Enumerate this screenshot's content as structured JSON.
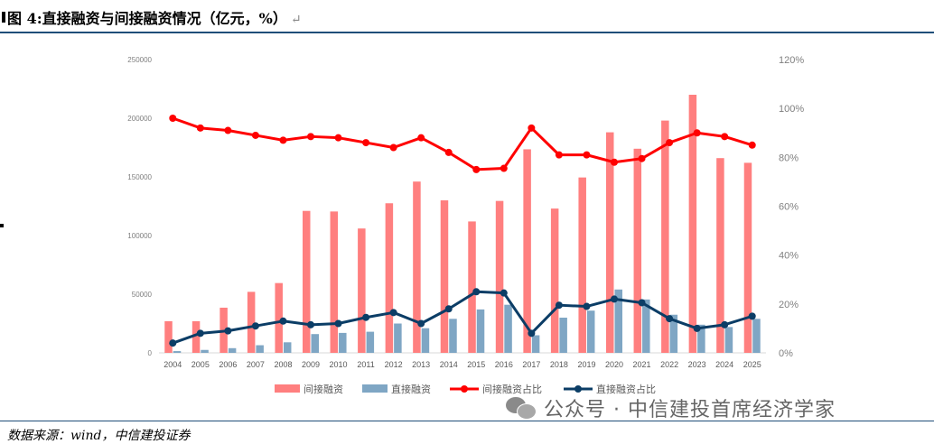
{
  "title": "图 4:直接融资与间接融资情况（亿元，%）",
  "title_suffix": "↵",
  "source": "数据来源：wind，中信建投证券",
  "watermark": "公众号 · 中信建投首席经济学家",
  "colors": {
    "indirect_bar": "#ff7f7f",
    "direct_bar": "#7fa6c4",
    "indirect_line": "#ff0000",
    "direct_line": "#0b3d66",
    "axis_text": "#7f7f7f",
    "rule": "#1f4e79"
  },
  "chart_data": {
    "type": "bar",
    "categories": [
      "2004",
      "2005",
      "2006",
      "2007",
      "2008",
      "2009",
      "2010",
      "2011",
      "2012",
      "2013",
      "2014",
      "2015",
      "2016",
      "2017",
      "2018",
      "2019",
      "2020",
      "2021",
      "2022",
      "2023",
      "2024",
      "2025"
    ],
    "series": [
      {
        "name": "间接融资",
        "type": "bar",
        "axis": "left",
        "values": [
          27000,
          27000,
          38500,
          52000,
          59500,
          121000,
          120500,
          106000,
          127500,
          146000,
          130000,
          112000,
          129500,
          173500,
          123000,
          149500,
          188000,
          174000,
          198000,
          220000,
          166000,
          162000
        ]
      },
      {
        "name": "直接融资",
        "type": "bar",
        "axis": "left",
        "values": [
          1500,
          2500,
          4000,
          6500,
          9000,
          16000,
          17000,
          18000,
          25000,
          21000,
          29000,
          37000,
          41000,
          15000,
          30000,
          36000,
          54000,
          45500,
          32500,
          24000,
          22000,
          29000
        ]
      },
      {
        "name": "间接融资占比",
        "type": "line",
        "axis": "right",
        "values": [
          96,
          92,
          91,
          89,
          87,
          88.5,
          88,
          86,
          84,
          88,
          82,
          75,
          75.5,
          92,
          81,
          81,
          78,
          79.5,
          86,
          90,
          88.5,
          85
        ]
      },
      {
        "name": "直接融资占比",
        "type": "line",
        "axis": "right",
        "values": [
          4,
          8,
          9,
          11,
          13,
          11.5,
          12,
          14.5,
          16.5,
          12,
          18,
          25,
          24.5,
          8,
          19.5,
          19,
          22,
          20.5,
          14,
          10,
          11.5,
          15
        ]
      }
    ],
    "y_left": {
      "min": 0,
      "max": 250000,
      "ticks": [
        "0",
        "50000",
        "100000",
        "150000",
        "200000",
        "250000"
      ]
    },
    "y_right": {
      "min": 0,
      "max": 120,
      "ticks": [
        "0%",
        "20%",
        "40%",
        "60%",
        "80%",
        "100%",
        "120%"
      ]
    },
    "grid": false,
    "legend_position": "bottom"
  }
}
